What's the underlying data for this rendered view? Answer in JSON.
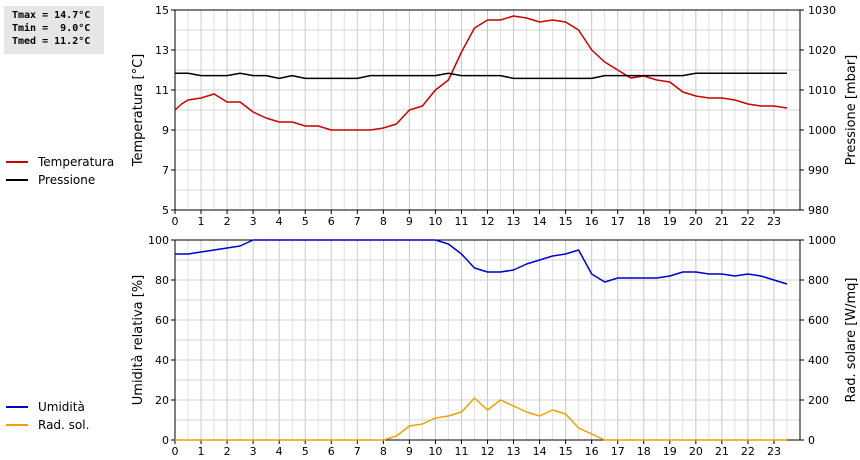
{
  "stats": {
    "tmax": "Tmax = 14.7°C",
    "tmin": "Tmin =  9.0°C",
    "tmed": "Tmed = 11.2°C"
  },
  "legend_top": [
    {
      "label": "Temperatura",
      "color": "#cc0000"
    },
    {
      "label": "Pressione",
      "color": "#000000"
    }
  ],
  "legend_bottom": [
    {
      "label": "Umidità",
      "color": "#0000cc"
    },
    {
      "label": "Rad. sol.",
      "color": "#f0a000"
    }
  ],
  "chart_data": [
    {
      "type": "line",
      "ylabel": "Temperatura [°C]",
      "y2label": "Pressione [mbar]",
      "xlim": [
        0,
        24
      ],
      "ylim": [
        5,
        15
      ],
      "y2lim": [
        980,
        1030
      ],
      "xticks": [
        0,
        1,
        2,
        3,
        4,
        5,
        6,
        7,
        8,
        9,
        10,
        11,
        12,
        13,
        14,
        15,
        16,
        17,
        18,
        19,
        20,
        21,
        22,
        23
      ],
      "yticks": [
        5,
        7,
        9,
        11,
        13,
        15
      ],
      "y2ticks": [
        980,
        990,
        1000,
        1010,
        1020,
        1030
      ],
      "grid": true,
      "series": [
        {
          "name": "Temperatura",
          "axis": "left",
          "color": "#cc0000",
          "x": [
            0,
            0.25,
            0.5,
            1,
            1.5,
            2,
            2.5,
            3,
            3.5,
            4,
            4.5,
            5,
            5.5,
            6,
            6.5,
            7,
            7.5,
            8,
            8.5,
            9,
            9.5,
            10,
            10.5,
            11,
            11.5,
            12,
            12.5,
            13,
            13.5,
            14,
            14.5,
            15,
            15.5,
            16,
            16.5,
            17,
            17.5,
            18,
            18.5,
            19,
            19.5,
            20,
            20.5,
            21,
            21.5,
            22,
            22.5,
            23,
            23.5
          ],
          "y": [
            10.0,
            10.3,
            10.5,
            10.6,
            10.8,
            10.4,
            10.4,
            9.9,
            9.6,
            9.4,
            9.4,
            9.2,
            9.2,
            9.0,
            9.0,
            9.0,
            9.0,
            9.1,
            9.3,
            10.0,
            10.2,
            11.0,
            11.5,
            12.9,
            14.1,
            14.5,
            14.5,
            14.7,
            14.6,
            14.4,
            14.5,
            14.4,
            14.0,
            13.0,
            12.4,
            12.0,
            11.6,
            11.7,
            11.5,
            11.4,
            10.9,
            10.7,
            10.6,
            10.6,
            10.5,
            10.3,
            10.2,
            10.2,
            10.1
          ]
        },
        {
          "name": "Pressione",
          "axis": "right",
          "color": "#000000",
          "x": [
            0,
            0.5,
            1,
            1.5,
            2,
            2.5,
            3,
            3.5,
            4,
            4.5,
            5,
            5.5,
            6,
            6.5,
            7,
            7.5,
            8,
            8.5,
            9,
            9.5,
            10,
            10.5,
            11,
            11.5,
            12,
            12.5,
            13,
            13.5,
            14,
            14.5,
            15,
            15.5,
            16,
            16.5,
            17,
            17.5,
            18,
            18.5,
            19,
            19.5,
            20,
            20.5,
            21,
            21.5,
            22,
            22.5,
            23,
            23.5
          ],
          "y": [
            1014.2,
            1014.2,
            1013.6,
            1013.6,
            1013.6,
            1014.2,
            1013.6,
            1013.6,
            1012.9,
            1013.6,
            1012.9,
            1012.9,
            1012.9,
            1012.9,
            1012.9,
            1013.6,
            1013.6,
            1013.6,
            1013.6,
            1013.6,
            1013.6,
            1014.2,
            1013.6,
            1013.6,
            1013.6,
            1013.6,
            1012.9,
            1012.9,
            1012.9,
            1012.9,
            1012.9,
            1012.9,
            1012.9,
            1013.6,
            1013.6,
            1013.6,
            1013.6,
            1013.6,
            1013.6,
            1013.6,
            1014.2,
            1014.2,
            1014.2,
            1014.2,
            1014.2,
            1014.2,
            1014.2,
            1014.2
          ]
        }
      ]
    },
    {
      "type": "line",
      "ylabel": "Umidità relativa [%]",
      "y2label": "Rad. solare [W/mq]",
      "xlim": [
        0,
        24
      ],
      "ylim": [
        0,
        100
      ],
      "y2lim": [
        0,
        1000
      ],
      "xticks": [
        0,
        1,
        2,
        3,
        4,
        5,
        6,
        7,
        8,
        9,
        10,
        11,
        12,
        13,
        14,
        15,
        16,
        17,
        18,
        19,
        20,
        21,
        22,
        23
      ],
      "yticks": [
        0,
        20,
        40,
        60,
        80,
        100
      ],
      "y2ticks": [
        0,
        200,
        400,
        600,
        800,
        1000
      ],
      "grid": true,
      "series": [
        {
          "name": "Umidità",
          "axis": "left",
          "color": "#0000cc",
          "x": [
            0,
            0.5,
            1,
            1.5,
            2,
            2.5,
            3,
            3.5,
            4,
            5,
            6,
            7,
            8,
            9,
            10,
            10.5,
            11,
            11.5,
            12,
            12.5,
            13,
            13.5,
            14,
            14.5,
            15,
            15.5,
            16,
            16.5,
            17,
            17.5,
            18,
            18.5,
            19,
            19.5,
            20,
            20.5,
            21,
            21.5,
            22,
            22.5,
            23,
            23.5
          ],
          "y": [
            93,
            93,
            94,
            95,
            96,
            97,
            100,
            100,
            100,
            100,
            100,
            100,
            100,
            100,
            100,
            98,
            93,
            86,
            84,
            84,
            85,
            88,
            90,
            92,
            93,
            95,
            83,
            79,
            81,
            81,
            81,
            81,
            82,
            84,
            84,
            83,
            83,
            82,
            83,
            82,
            80,
            78
          ]
        },
        {
          "name": "Rad. sol.",
          "axis": "right",
          "color": "#f0a000",
          "x": [
            0,
            1,
            2,
            3,
            4,
            5,
            6,
            7,
            7.5,
            8,
            8.5,
            9,
            9.5,
            10,
            10.5,
            11,
            11.5,
            12,
            12.5,
            13,
            13.5,
            14,
            14.5,
            15,
            15.5,
            16,
            16.5,
            17,
            18,
            19,
            20,
            21,
            22,
            23,
            23.5
          ],
          "y": [
            0,
            0,
            0,
            0,
            0,
            0,
            0,
            0,
            0,
            0,
            20,
            70,
            80,
            110,
            120,
            140,
            210,
            150,
            200,
            170,
            140,
            120,
            150,
            130,
            60,
            30,
            0,
            0,
            0,
            0,
            0,
            0,
            0,
            0,
            0
          ]
        }
      ]
    }
  ]
}
